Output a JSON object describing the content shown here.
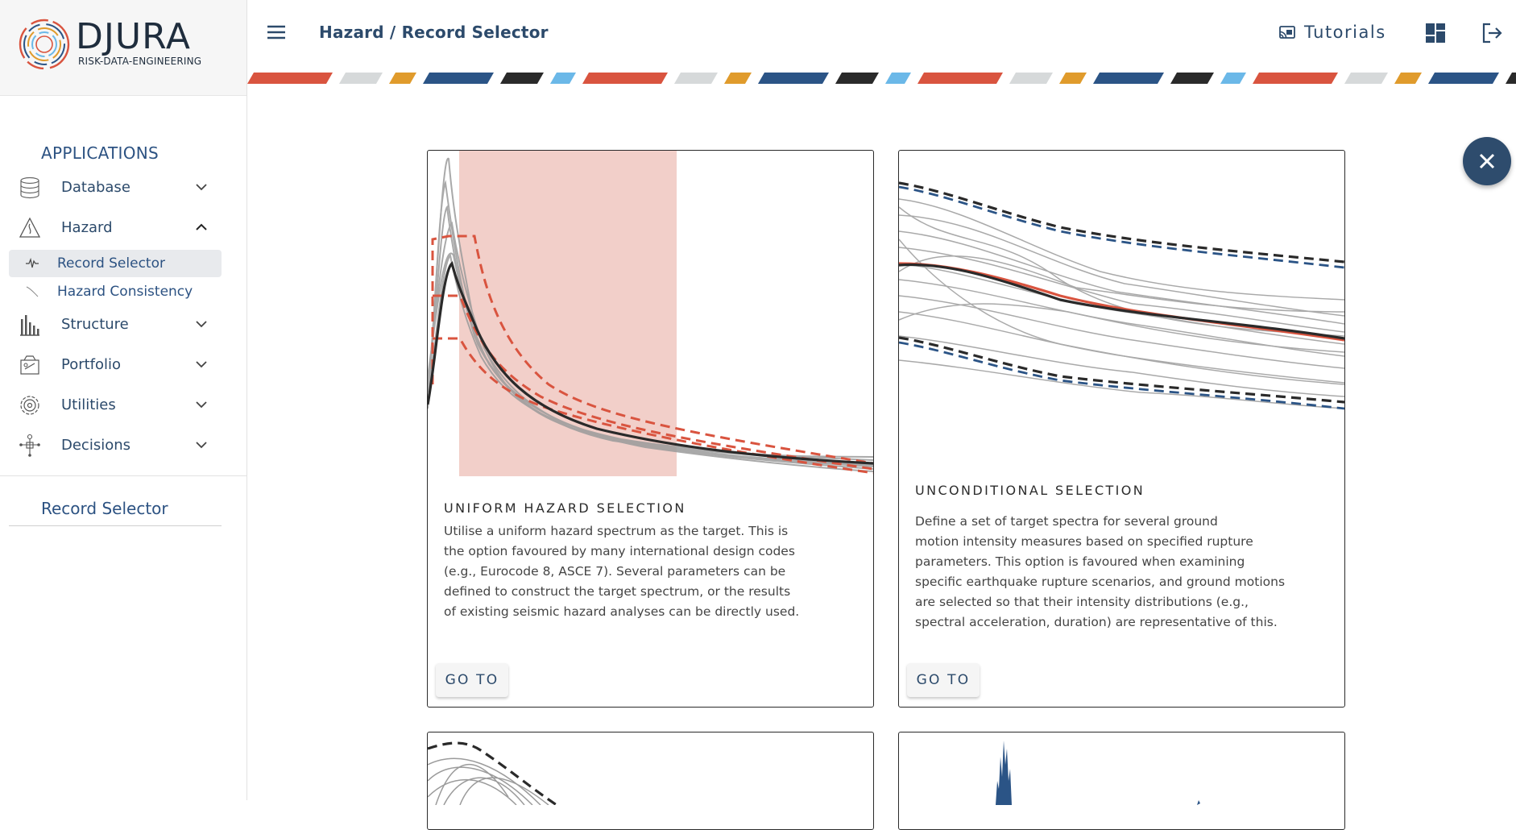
{
  "brand": {
    "name": "DJURA",
    "tagline": "RISK-DATA-ENGINEERING"
  },
  "sidebar": {
    "heading": "APPLICATIONS",
    "items": [
      {
        "label": "Database",
        "icon": "database-icon",
        "expanded": false
      },
      {
        "label": "Hazard",
        "icon": "hazard-warning-icon",
        "expanded": true
      },
      {
        "label": "Structure",
        "icon": "structure-bars-icon",
        "expanded": false
      },
      {
        "label": "Portfolio",
        "icon": "portfolio-icon",
        "expanded": false
      },
      {
        "label": "Utilities",
        "icon": "utilities-gear-icon",
        "expanded": false
      },
      {
        "label": "Decisions",
        "icon": "decisions-tree-icon",
        "expanded": false
      }
    ],
    "hazard_subitems": [
      {
        "label": "Record Selector",
        "icon": "waveform-icon",
        "active": true
      },
      {
        "label": "Hazard Consistency",
        "icon": "curve-icon",
        "active": false
      }
    ],
    "current_section": "Record Selector"
  },
  "topbar": {
    "breadcrumb": "Hazard / Record Selector",
    "tutorials_label": "Tutorials",
    "icons": [
      "menu-icon",
      "cast-icon",
      "dashboard-icon",
      "logout-icon"
    ]
  },
  "cards": [
    {
      "title": "UNIFORM HAZARD SELECTION",
      "description_lines": [
        "Utilise a uniform hazard spectrum as the target. This is",
        "the option favoured by many international design codes",
        "(e.g., Eurocode 8, ASCE 7). Several parameters can be",
        "defined to construct the target spectrum, or the results",
        "of existing seismic hazard analyses can be directly used."
      ],
      "button": "GO TO"
    },
    {
      "title": "UNCONDITIONAL SELECTION",
      "description_lines": [
        "Define a set of target spectra for several ground",
        "motion intensity measures based on specified rupture",
        "parameters. This option is favoured when examining",
        "specific earthquake rupture scenarios, and ground motions",
        "are selected so that their intensity distributions (e.g.,",
        "spectral acceleration, duration) are representative of this."
      ],
      "button": "GO TO"
    }
  ],
  "colors": {
    "brand_navy": "#2c4a6b",
    "accent_red": "#d9543f",
    "accent_orange": "#e09b2c",
    "accent_blue": "#2b5486",
    "accent_sky": "#6bb8e8",
    "shade_pink": "#f2cfc9"
  },
  "close_icon": "close-icon"
}
